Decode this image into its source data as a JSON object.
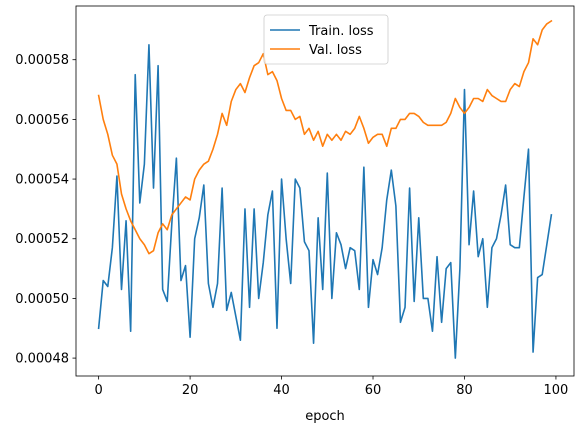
{
  "chart_data": {
    "type": "line",
    "xlabel": "epoch",
    "ylabel": "",
    "title": "",
    "xlim": [
      -4.95,
      103.95
    ],
    "ylim": [
      0.000474,
      0.000598
    ],
    "xticks": [
      0,
      20,
      40,
      60,
      80,
      100
    ],
    "xtick_labels": [
      "0",
      "20",
      "40",
      "60",
      "80",
      "100"
    ],
    "yticks": [
      0.00048,
      0.0005,
      0.00052,
      0.00054,
      0.00056,
      0.00058
    ],
    "ytick_labels": [
      "0.00048",
      "0.00050",
      "0.00052",
      "0.00054",
      "0.00056",
      "0.00058"
    ],
    "legend_position": "upper-center",
    "grid": false,
    "x": [
      0,
      1,
      2,
      3,
      4,
      5,
      6,
      7,
      8,
      9,
      10,
      11,
      12,
      13,
      14,
      15,
      16,
      17,
      18,
      19,
      20,
      21,
      22,
      23,
      24,
      25,
      26,
      27,
      28,
      29,
      30,
      31,
      32,
      33,
      34,
      35,
      36,
      37,
      38,
      39,
      40,
      41,
      42,
      43,
      44,
      45,
      46,
      47,
      48,
      49,
      50,
      51,
      52,
      53,
      54,
      55,
      56,
      57,
      58,
      59,
      60,
      61,
      62,
      63,
      64,
      65,
      66,
      67,
      68,
      69,
      70,
      71,
      72,
      73,
      74,
      75,
      76,
      77,
      78,
      79,
      80,
      81,
      82,
      83,
      84,
      85,
      86,
      87,
      88,
      89,
      90,
      91,
      92,
      93,
      94,
      95,
      96,
      97,
      98,
      99
    ],
    "series": [
      {
        "name": "Train. loss",
        "color": "#1f77b4",
        "values": [
          0.00049,
          0.000506,
          0.000504,
          0.000517,
          0.000541,
          0.000503,
          0.000526,
          0.000489,
          0.000575,
          0.000532,
          0.000545,
          0.000585,
          0.000537,
          0.000578,
          0.000503,
          0.000499,
          0.000525,
          0.000547,
          0.000506,
          0.000511,
          0.000487,
          0.00052,
          0.000527,
          0.000538,
          0.000505,
          0.000497,
          0.000505,
          0.000537,
          0.000496,
          0.000502,
          0.000494,
          0.000486,
          0.00053,
          0.000497,
          0.00053,
          0.0005,
          0.000512,
          0.000528,
          0.000536,
          0.00049,
          0.00054,
          0.00052,
          0.000505,
          0.00054,
          0.000537,
          0.000519,
          0.000516,
          0.000485,
          0.000527,
          0.000503,
          0.000542,
          0.0005,
          0.000522,
          0.000518,
          0.00051,
          0.000517,
          0.000516,
          0.000503,
          0.000544,
          0.000497,
          0.000513,
          0.000508,
          0.000517,
          0.000533,
          0.000543,
          0.000531,
          0.000492,
          0.000497,
          0.000537,
          0.000499,
          0.000527,
          0.0005,
          0.0005,
          0.000489,
          0.000514,
          0.000492,
          0.00051,
          0.000512,
          0.00048,
          0.00051,
          0.00057,
          0.000518,
          0.000536,
          0.000514,
          0.00052,
          0.000497,
          0.000517,
          0.00052,
          0.000528,
          0.000538,
          0.000518,
          0.000517,
          0.000517,
          0.000534,
          0.00055,
          0.000482,
          0.000507,
          0.000508,
          0.000518,
          0.000528
        ]
      },
      {
        "name": "Val. loss",
        "color": "#ff7f0e",
        "values": [
          0.000568,
          0.00056,
          0.000555,
          0.000548,
          0.000545,
          0.000535,
          0.00053,
          0.000526,
          0.000523,
          0.00052,
          0.000518,
          0.000515,
          0.000516,
          0.000522,
          0.000525,
          0.000523,
          0.000528,
          0.00053,
          0.000532,
          0.000534,
          0.000533,
          0.00054,
          0.000543,
          0.000545,
          0.000546,
          0.00055,
          0.000555,
          0.000562,
          0.000558,
          0.000566,
          0.00057,
          0.000572,
          0.000569,
          0.000574,
          0.000578,
          0.000579,
          0.000582,
          0.000575,
          0.000576,
          0.000573,
          0.000567,
          0.000563,
          0.000563,
          0.00056,
          0.000561,
          0.000555,
          0.000557,
          0.000553,
          0.000556,
          0.000551,
          0.000555,
          0.000553,
          0.000555,
          0.000553,
          0.000556,
          0.000555,
          0.000557,
          0.000561,
          0.000557,
          0.000552,
          0.000554,
          0.000555,
          0.000555,
          0.000551,
          0.000557,
          0.000557,
          0.00056,
          0.00056,
          0.000562,
          0.000562,
          0.000561,
          0.000559,
          0.000558,
          0.000558,
          0.000558,
          0.000558,
          0.000559,
          0.000562,
          0.000567,
          0.000564,
          0.000562,
          0.000564,
          0.000567,
          0.000567,
          0.000566,
          0.00057,
          0.000568,
          0.000567,
          0.000566,
          0.000566,
          0.00057,
          0.000572,
          0.000571,
          0.000576,
          0.000579,
          0.000587,
          0.000585,
          0.00059,
          0.000592,
          0.000593
        ]
      }
    ]
  }
}
